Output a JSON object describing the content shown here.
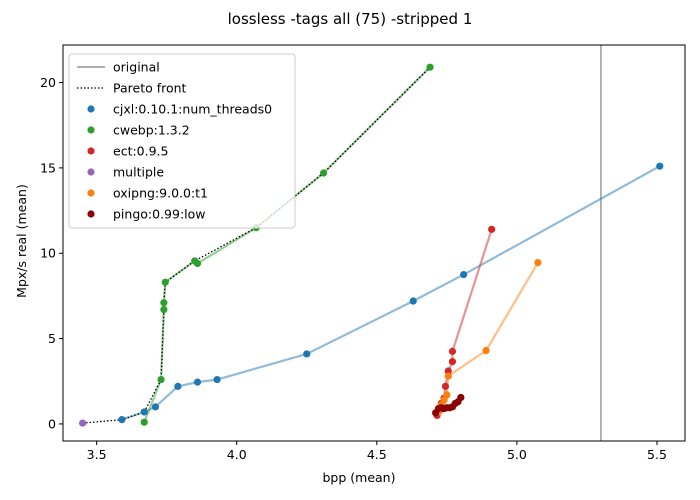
{
  "chart_data": {
    "type": "scatter",
    "title": "lossless -tags all (75) -stripped 1",
    "xlabel": "bpp (mean)",
    "ylabel": "Mpx/s real (mean)",
    "xlim": [
      3.38,
      5.6
    ],
    "ylim": [
      -1.0,
      22.2
    ],
    "xticks": [
      3.5,
      4.0,
      4.5,
      5.0,
      5.5
    ],
    "xtick_labels": [
      "3.5",
      "4.0",
      "4.5",
      "5.0",
      "5.5"
    ],
    "yticks": [
      0,
      5,
      10,
      15,
      20
    ],
    "ytick_labels": [
      "0",
      "5",
      "10",
      "15",
      "20"
    ],
    "grid": false,
    "legend_position": "top-left",
    "original_line": {
      "label": "original",
      "x": 5.3,
      "color": "#808080"
    },
    "pareto_front": {
      "label": "Pareto front",
      "color": "#000000",
      "points": [
        [
          3.45,
          0.05
        ],
        [
          3.59,
          0.25
        ],
        [
          3.67,
          0.7
        ],
        [
          3.73,
          2.6
        ],
        [
          3.74,
          6.7
        ],
        [
          3.74,
          7.1
        ],
        [
          3.745,
          8.3
        ],
        [
          3.85,
          9.55
        ],
        [
          4.07,
          11.5
        ],
        [
          4.31,
          14.7
        ],
        [
          4.69,
          20.9
        ]
      ]
    },
    "series": [
      {
        "name": "cjxl:0.10.1:num_threads0",
        "color": "#1f77b4",
        "connected": true,
        "points": [
          [
            3.59,
            0.25
          ],
          [
            3.67,
            0.7
          ],
          [
            3.71,
            1.0
          ],
          [
            3.79,
            2.2
          ],
          [
            3.86,
            2.45
          ],
          [
            3.93,
            2.6
          ],
          [
            4.25,
            4.1
          ],
          [
            4.63,
            7.2
          ],
          [
            4.81,
            8.75
          ],
          [
            5.51,
            15.1
          ]
        ]
      },
      {
        "name": "cwebp:1.3.2",
        "color": "#2ca02c",
        "connected": true,
        "points": [
          [
            3.67,
            0.1
          ],
          [
            3.73,
            2.6
          ],
          [
            3.74,
            6.7
          ],
          [
            3.74,
            7.1
          ],
          [
            3.745,
            8.3
          ],
          [
            3.85,
            9.55
          ],
          [
            3.86,
            9.4
          ],
          [
            4.07,
            11.5
          ],
          [
            4.31,
            14.7
          ],
          [
            4.69,
            20.9
          ]
        ]
      },
      {
        "name": "ect:0.9.5",
        "color": "#d62728",
        "connected": true,
        "points": [
          [
            4.715,
            0.5
          ],
          [
            4.725,
            0.8
          ],
          [
            4.73,
            1.2
          ],
          [
            4.74,
            1.5
          ],
          [
            4.745,
            2.2
          ],
          [
            4.755,
            3.1
          ],
          [
            4.77,
            3.65
          ],
          [
            4.77,
            4.25
          ],
          [
            4.91,
            11.4
          ]
        ]
      },
      {
        "name": "multiple",
        "color": "#9467bd",
        "connected": false,
        "points": [
          [
            3.45,
            0.05
          ]
        ]
      },
      {
        "name": "oxipng:9.0.0:t1",
        "color": "#ff7f0e",
        "connected": true,
        "points": [
          [
            4.72,
            0.7
          ],
          [
            4.73,
            1.1
          ],
          [
            4.74,
            1.4
          ],
          [
            4.75,
            1.7
          ],
          [
            4.755,
            2.8
          ],
          [
            4.89,
            4.3
          ],
          [
            5.075,
            9.45
          ]
        ]
      },
      {
        "name": "pingo:0.99:low",
        "color": "#8b0000",
        "connected": true,
        "points": [
          [
            4.71,
            0.65
          ],
          [
            4.72,
            0.9
          ],
          [
            4.73,
            0.95
          ],
          [
            4.74,
            0.9
          ],
          [
            4.75,
            0.95
          ],
          [
            4.76,
            0.95
          ],
          [
            4.77,
            1.0
          ],
          [
            4.78,
            1.2
          ],
          [
            4.79,
            1.3
          ],
          [
            4.8,
            1.55
          ]
        ]
      }
    ]
  }
}
